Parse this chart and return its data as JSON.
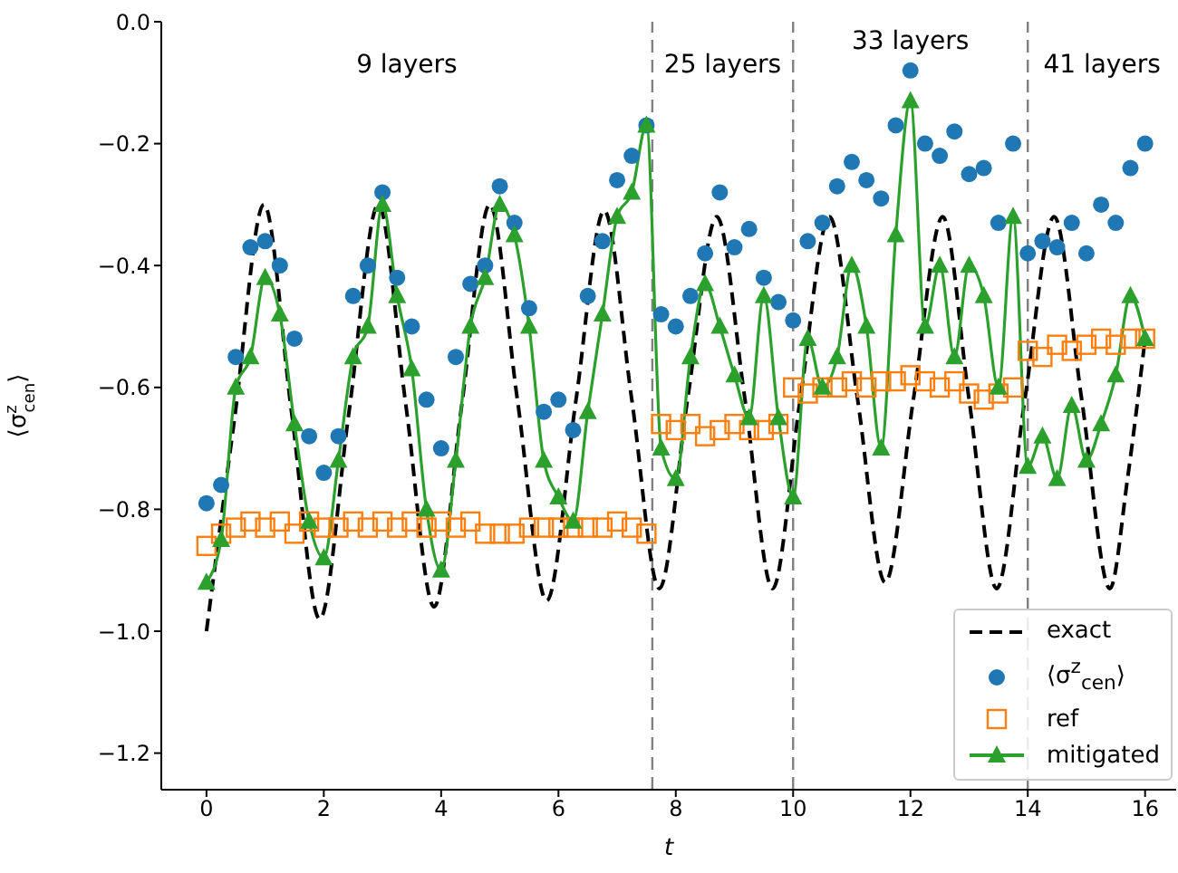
{
  "chart_data": {
    "type": "line",
    "xlabel": "t",
    "ylabel": "⟨σ$^{z}$$_{cen}$⟩",
    "xlim": [
      -0.77,
      16.53
    ],
    "ylim": [
      -1.26,
      0.0
    ],
    "xticks": [
      0,
      2,
      4,
      6,
      8,
      10,
      12,
      14,
      16
    ],
    "yticks": [
      {
        "value": -1.2,
        "label": "−1.2"
      },
      {
        "value": -1.0,
        "label": "−1.0"
      },
      {
        "value": -0.8,
        "label": "−0.8"
      },
      {
        "value": -0.6,
        "label": "−0.6"
      },
      {
        "value": -0.4,
        "label": "−0.4"
      },
      {
        "value": -0.2,
        "label": "−0.2"
      },
      {
        "value": 0.0,
        "label": "0.0"
      }
    ],
    "grid": false,
    "legend": "bottom right",
    "ref_lines": [
      {
        "axis": "x",
        "value": 7.6,
        "color": "#808080",
        "line_style": "dashed"
      },
      {
        "axis": "x",
        "value": 10,
        "color": "#808080",
        "line_style": "dashed"
      },
      {
        "axis": "x",
        "value": 14,
        "color": "#808080",
        "line_style": "dashed"
      }
    ],
    "annotations": [
      "9 layers",
      "25 layers",
      "33 layers",
      "41 layers"
    ],
    "series": [
      {
        "name": "exact",
        "type": "line",
        "color": "#000000",
        "line_style": "dashed",
        "marker": "none",
        "x": [
          0,
          0.48,
          0.98,
          1.45,
          1.93,
          2.43,
          2.93,
          3.4,
          3.88,
          4.35,
          4.83,
          5.3,
          5.8,
          6.3,
          6.78,
          7.25,
          7.72,
          8.2,
          8.7,
          9.18,
          9.65,
          10.12,
          10.62,
          11.1,
          11.57,
          12.05,
          12.55,
          13.0,
          13.47,
          13.95,
          14.45,
          14.92,
          15.4,
          15.7,
          16.0
        ],
        "values": [
          -1.0,
          -0.65,
          -0.3,
          -0.64,
          -0.98,
          -0.64,
          -0.3,
          -0.63,
          -0.96,
          -0.63,
          -0.3,
          -0.62,
          -0.95,
          -0.62,
          -0.31,
          -0.62,
          -0.93,
          -0.62,
          -0.32,
          -0.62,
          -0.93,
          -0.62,
          -0.32,
          -0.62,
          -0.92,
          -0.62,
          -0.32,
          -0.62,
          -0.93,
          -0.62,
          -0.32,
          -0.62,
          -0.93,
          -0.75,
          -0.52
        ]
      },
      {
        "name": "⟨σ$^{z}$$_{cen}$⟩",
        "type": "scatter",
        "color": "#1f77b4",
        "marker": "circle",
        "x": [
          0,
          0.25,
          0.5,
          0.75,
          1,
          1.25,
          1.5,
          1.75,
          2,
          2.25,
          2.5,
          2.75,
          3,
          3.25,
          3.5,
          3.75,
          4,
          4.25,
          4.5,
          4.75,
          5,
          5.25,
          5.5,
          5.75,
          6,
          6.25,
          6.5,
          6.75,
          7,
          7.25,
          7.5,
          7.75,
          8,
          8.25,
          8.5,
          8.75,
          9,
          9.25,
          9.5,
          9.75,
          10,
          10.25,
          10.5,
          10.75,
          11,
          11.25,
          11.5,
          11.75,
          12,
          12.25,
          12.5,
          12.75,
          13,
          13.25,
          13.5,
          13.75,
          14,
          14.25,
          14.5,
          14.75,
          15,
          15.25,
          15.5,
          15.75,
          16
        ],
        "values": [
          -0.79,
          -0.76,
          -0.55,
          -0.37,
          -0.36,
          -0.4,
          -0.52,
          -0.68,
          -0.74,
          -0.68,
          -0.45,
          -0.4,
          -0.28,
          -0.42,
          -0.5,
          -0.62,
          -0.7,
          -0.55,
          -0.43,
          -0.4,
          -0.27,
          -0.33,
          -0.47,
          -0.64,
          -0.62,
          -0.67,
          -0.45,
          -0.36,
          -0.26,
          -0.22,
          -0.17,
          -0.48,
          -0.5,
          -0.45,
          -0.38,
          -0.28,
          -0.37,
          -0.34,
          -0.42,
          -0.46,
          -0.49,
          -0.36,
          -0.33,
          -0.27,
          -0.23,
          -0.26,
          -0.29,
          -0.17,
          -0.08,
          -0.2,
          -0.22,
          -0.18,
          -0.25,
          -0.24,
          -0.33,
          -0.2,
          -0.38,
          -0.36,
          -0.37,
          -0.33,
          -0.38,
          -0.3,
          -0.33,
          -0.24,
          -0.2
        ]
      },
      {
        "name": "ref",
        "type": "scatter",
        "color": "#ff7f0e",
        "marker": "square",
        "x": [
          0,
          0.25,
          0.5,
          0.75,
          1,
          1.25,
          1.5,
          1.75,
          2,
          2.25,
          2.5,
          2.75,
          3,
          3.25,
          3.5,
          3.75,
          4,
          4.25,
          4.5,
          4.75,
          5,
          5.25,
          5.5,
          5.75,
          6,
          6.25,
          6.5,
          6.75,
          7,
          7.25,
          7.5,
          7.75,
          8,
          8.25,
          8.5,
          8.75,
          9,
          9.25,
          9.5,
          9.75,
          10,
          10.25,
          10.5,
          10.75,
          11,
          11.25,
          11.5,
          11.75,
          12,
          12.25,
          12.5,
          12.75,
          13,
          13.25,
          13.5,
          13.75,
          14,
          14.25,
          14.5,
          14.75,
          15,
          15.25,
          15.5,
          15.75,
          16
        ],
        "values": [
          -0.86,
          -0.84,
          -0.83,
          -0.82,
          -0.83,
          -0.82,
          -0.84,
          -0.82,
          -0.83,
          -0.83,
          -0.82,
          -0.83,
          -0.82,
          -0.83,
          -0.82,
          -0.83,
          -0.82,
          -0.83,
          -0.82,
          -0.84,
          -0.84,
          -0.84,
          -0.83,
          -0.83,
          -0.83,
          -0.83,
          -0.83,
          -0.83,
          -0.82,
          -0.83,
          -0.84,
          -0.66,
          -0.67,
          -0.66,
          -0.68,
          -0.67,
          -0.66,
          -0.67,
          -0.67,
          -0.66,
          -0.6,
          -0.61,
          -0.6,
          -0.6,
          -0.59,
          -0.6,
          -0.59,
          -0.59,
          -0.58,
          -0.59,
          -0.6,
          -0.59,
          -0.61,
          -0.62,
          -0.61,
          -0.6,
          -0.54,
          -0.55,
          -0.53,
          -0.54,
          -0.53,
          -0.52,
          -0.53,
          -0.52,
          -0.52
        ]
      },
      {
        "name": "mitigated",
        "type": "line",
        "color": "#2ca02c",
        "line_style": "solid",
        "marker": "triangle",
        "x": [
          0,
          0.25,
          0.5,
          0.75,
          1,
          1.25,
          1.5,
          1.75,
          2,
          2.25,
          2.5,
          2.75,
          3,
          3.25,
          3.5,
          3.75,
          4,
          4.25,
          4.5,
          4.75,
          5,
          5.25,
          5.5,
          5.75,
          6,
          6.25,
          6.5,
          6.75,
          7,
          7.25,
          7.5,
          7.75,
          8,
          8.25,
          8.5,
          8.75,
          9,
          9.25,
          9.5,
          9.75,
          10,
          10.25,
          10.5,
          10.75,
          11,
          11.25,
          11.5,
          11.75,
          12,
          12.25,
          12.5,
          12.75,
          13,
          13.25,
          13.5,
          13.75,
          14,
          14.25,
          14.5,
          14.75,
          15,
          15.25,
          15.5,
          15.75,
          16
        ],
        "values": [
          -0.92,
          -0.85,
          -0.6,
          -0.55,
          -0.42,
          -0.48,
          -0.66,
          -0.82,
          -0.88,
          -0.72,
          -0.55,
          -0.5,
          -0.3,
          -0.45,
          -0.57,
          -0.8,
          -0.9,
          -0.72,
          -0.5,
          -0.42,
          -0.3,
          -0.35,
          -0.5,
          -0.72,
          -0.78,
          -0.82,
          -0.64,
          -0.48,
          -0.32,
          -0.28,
          -0.17,
          -0.7,
          -0.75,
          -0.55,
          -0.43,
          -0.5,
          -0.58,
          -0.65,
          -0.45,
          -0.65,
          -0.78,
          -0.52,
          -0.6,
          -0.55,
          -0.4,
          -0.5,
          -0.7,
          -0.35,
          -0.13,
          -0.5,
          -0.4,
          -0.55,
          -0.4,
          -0.45,
          -0.6,
          -0.32,
          -0.73,
          -0.68,
          -0.75,
          -0.63,
          -0.72,
          -0.66,
          -0.58,
          -0.45,
          -0.52
        ]
      }
    ]
  }
}
